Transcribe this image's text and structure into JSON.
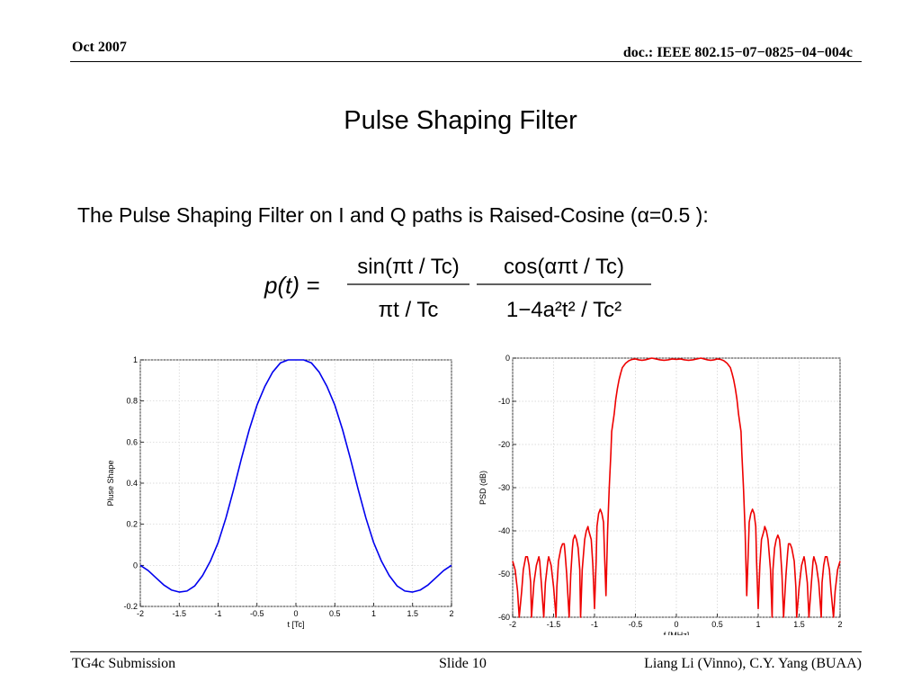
{
  "header": {
    "date": "Oct 2007",
    "doc": "doc.: IEEE 802.15−07−0825−04−004c"
  },
  "title": "Pulse Shaping Filter",
  "intro": "The Pulse Shaping Filter on I and Q paths is Raised-Cosine (α=0.5 ):",
  "formula": {
    "lhs": "p(t) =",
    "num1": "sin(πt / Tc)",
    "den1": "πt / Tc",
    "num2": "cos(απt / Tc)",
    "den2": "1−4a²t² / Tc²"
  },
  "footer": {
    "left": "TG4c Submission",
    "center": "Slide 10",
    "right": "Liang Li (Vinno), C.Y. Yang (BUAA)"
  },
  "chart_data": [
    {
      "type": "line",
      "title": "",
      "xlabel": "t [Tc]",
      "ylabel": "Pluse Shape",
      "xlim": [
        -2,
        2
      ],
      "ylim": [
        -0.2,
        1
      ],
      "xticks": [
        "-2",
        "-1.5",
        "-1",
        "-0.5",
        "0",
        "0.5",
        "1",
        "1.5",
        "2"
      ],
      "yticks": [
        "-0.2",
        "0",
        "0.2",
        "0.4",
        "0.6",
        "0.8",
        "1"
      ],
      "grid": true,
      "color": "#0000ee",
      "series": [
        {
          "x": [
            -2,
            -1.9,
            -1.8,
            -1.7,
            -1.6,
            -1.5,
            -1.4,
            -1.3,
            -1.2,
            -1.1,
            -1.0,
            -0.9,
            -0.8,
            -0.7,
            -0.6,
            -0.5,
            -0.4,
            -0.3,
            -0.2,
            -0.1,
            0,
            0.1,
            0.2,
            0.3,
            0.4,
            0.5,
            0.6,
            0.7,
            0.8,
            0.9,
            1.0,
            1.1,
            1.2,
            1.3,
            1.4,
            1.5,
            1.6,
            1.7,
            1.8,
            1.9,
            2
          ],
          "values": [
            0,
            -0.025,
            -0.06,
            -0.095,
            -0.12,
            -0.13,
            -0.125,
            -0.1,
            -0.05,
            0.02,
            0.11,
            0.23,
            0.37,
            0.52,
            0.66,
            0.78,
            0.87,
            0.94,
            0.985,
            1.0,
            1.0,
            1.0,
            0.985,
            0.94,
            0.87,
            0.78,
            0.66,
            0.52,
            0.37,
            0.23,
            0.11,
            0.02,
            -0.05,
            -0.1,
            -0.125,
            -0.13,
            -0.12,
            -0.095,
            -0.06,
            -0.025,
            0
          ]
        }
      ]
    },
    {
      "type": "line",
      "title": "",
      "xlabel": "f [MHz]",
      "ylabel": "PSD (dB)",
      "xlim": [
        -2,
        2
      ],
      "ylim": [
        -60,
        0
      ],
      "xticks": [
        "-2",
        "-1.5",
        "-1",
        "-0.5",
        "0",
        "0.5",
        "1",
        "1.5",
        "2"
      ],
      "yticks": [
        "-60",
        "-50",
        "-40",
        "-30",
        "-20",
        "-10",
        "0"
      ],
      "grid": true,
      "color": "#ee0000",
      "series": [
        {
          "x": [
            -2.0,
            -1.97,
            -1.94,
            -1.92,
            -1.89,
            -1.87,
            -1.86,
            -1.84,
            -1.82,
            -1.8,
            -1.78,
            -1.77,
            -1.74,
            -1.71,
            -1.68,
            -1.67,
            -1.65,
            -1.62,
            -1.6,
            -1.57,
            -1.56,
            -1.53,
            -1.5,
            -1.47,
            -1.46,
            -1.44,
            -1.41,
            -1.39,
            -1.37,
            -1.36,
            -1.34,
            -1.31,
            -1.29,
            -1.27,
            -1.26,
            -1.24,
            -1.22,
            -1.2,
            -1.18,
            -1.17,
            -1.15,
            -1.12,
            -1.1,
            -1.08,
            -1.07,
            -1.04,
            -1.02,
            -1.0,
            -0.98,
            -0.97,
            -0.95,
            -0.93,
            -0.91,
            -0.89,
            -0.88,
            -0.86,
            -0.84,
            -0.82,
            -0.8,
            -0.79,
            -0.76,
            -0.74,
            -0.72,
            -0.7,
            -0.68,
            -0.66,
            -0.62,
            -0.58,
            -0.54,
            -0.5,
            -0.46,
            -0.42,
            -0.38,
            -0.34,
            -0.3,
            -0.25,
            -0.2,
            -0.15,
            -0.1,
            -0.05,
            0.0,
            0.05,
            0.1,
            0.15,
            0.2,
            0.25,
            0.3,
            0.34,
            0.38,
            0.42,
            0.46,
            0.5,
            0.54,
            0.58,
            0.62,
            0.66,
            0.68,
            0.7,
            0.72,
            0.74,
            0.76,
            0.79,
            0.8,
            0.82,
            0.84,
            0.86,
            0.88,
            0.89,
            0.91,
            0.93,
            0.95,
            0.97,
            0.98,
            1.0,
            1.02,
            1.04,
            1.07,
            1.08,
            1.1,
            1.12,
            1.15,
            1.17,
            1.18,
            1.2,
            1.22,
            1.24,
            1.26,
            1.27,
            1.29,
            1.31,
            1.34,
            1.36,
            1.37,
            1.39,
            1.41,
            1.44,
            1.46,
            1.47,
            1.5,
            1.53,
            1.56,
            1.57,
            1.6,
            1.62,
            1.65,
            1.67,
            1.68,
            1.71,
            1.74,
            1.77,
            1.78,
            1.8,
            1.82,
            1.84,
            1.86,
            1.87,
            1.89,
            1.92,
            1.94,
            1.97,
            2.0
          ],
          "values": [
            -47,
            -49,
            -54,
            -60,
            -54,
            -49,
            -48,
            -46,
            -46,
            -48,
            -52,
            -60,
            -52,
            -48,
            -46,
            -47,
            -52,
            -60,
            -52,
            -47,
            -46,
            -48,
            -53,
            -60,
            -53,
            -47,
            -44,
            -43,
            -43,
            -45,
            -50,
            -60,
            -50,
            -44,
            -42,
            -41,
            -42,
            -44,
            -49,
            -60,
            -49,
            -42,
            -40,
            -39,
            -40,
            -42,
            -48,
            -58,
            -47,
            -39,
            -36,
            -35,
            -36,
            -38,
            -44,
            -55,
            -40,
            -30,
            -22,
            -17,
            -13,
            -9.5,
            -7,
            -5,
            -3.5,
            -2.2,
            -1.2,
            -0.6,
            -0.3,
            -0.2,
            -0.4,
            -0.5,
            -0.4,
            -0.2,
            0,
            -0.2,
            -0.4,
            -0.5,
            -0.4,
            -0.2,
            -0.3,
            -0.2,
            -0.4,
            -0.5,
            -0.4,
            -0.2,
            0,
            -0.2,
            -0.4,
            -0.5,
            -0.4,
            -0.2,
            -0.3,
            -0.6,
            -1.2,
            -2.2,
            -3.5,
            -5,
            -7,
            -9.5,
            -13,
            -17,
            -22,
            -30,
            -40,
            -55,
            -44,
            -38,
            -36,
            -35,
            -36,
            -39,
            -47,
            -58,
            -48,
            -42,
            -40,
            -39,
            -40,
            -42,
            -49,
            -60,
            -49,
            -44,
            -42,
            -41,
            -42,
            -44,
            -50,
            -60,
            -50,
            -45,
            -43,
            -43,
            -44,
            -47,
            -53,
            -60,
            -53,
            -48,
            -46,
            -47,
            -52,
            -60,
            -52,
            -47,
            -46,
            -48,
            -52,
            -60,
            -52,
            -48,
            -46,
            -46,
            -48,
            -49,
            -54,
            -60,
            -54,
            -49,
            -47
          ]
        }
      ]
    }
  ]
}
